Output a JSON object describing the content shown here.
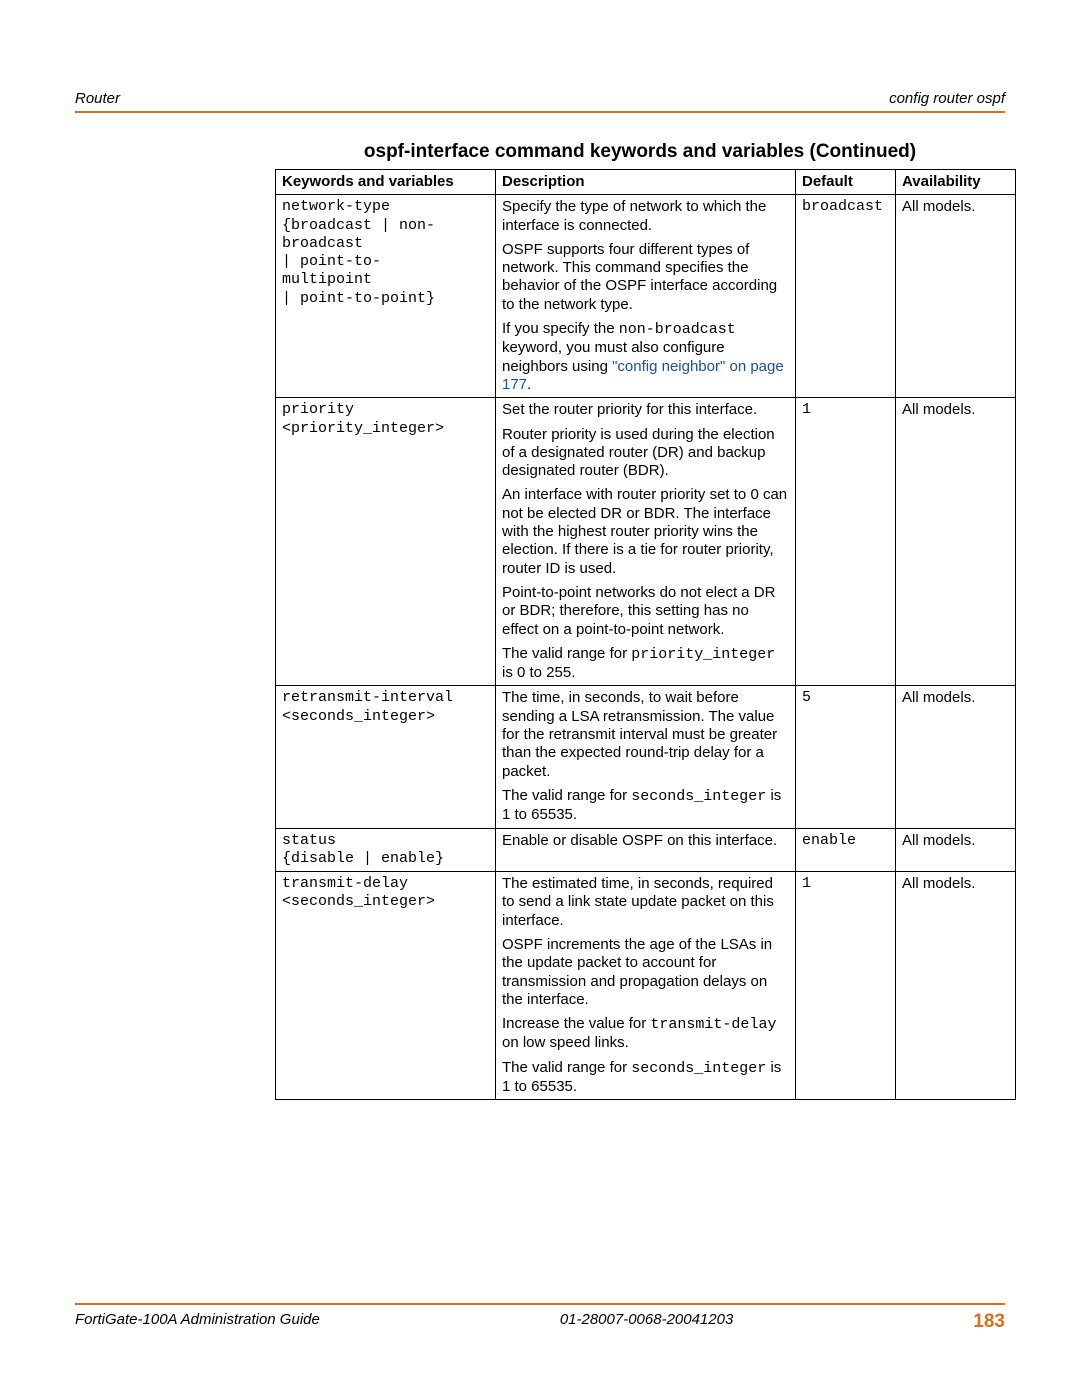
{
  "header": {
    "left": "Router",
    "right": "config router ospf"
  },
  "title": "ospf-interface command keywords and variables (Continued)",
  "columns": {
    "c1": "Keywords and variables",
    "c2": "Description",
    "c3": "Default",
    "c4": "Availability"
  },
  "rows": {
    "r1": {
      "kw_l1": "network-type",
      "kw_l2": "{broadcast | non-",
      "kw_l3": "broadcast",
      "kw_l4": "| point-to-",
      "kw_l5": "multipoint",
      "kw_l6": "| point-to-point}",
      "desc_p1": "Specify the type of network to which the interface is connected.",
      "desc_p2": "OSPF supports four different types of network. This command specifies the behavior of the OSPF interface according to the network type.",
      "desc_p3a": "If you specify the ",
      "desc_p3_mono": "non-broadcast",
      "desc_p3b": " keyword, you must also configure neighbors using ",
      "desc_p3_link": "\"config neighbor\" on page 177",
      "desc_p3c": ".",
      "default": "broadcast",
      "avail": "All models."
    },
    "r2": {
      "kw_l1": "priority",
      "kw_l2": "<priority_integer>",
      "desc_p1": "Set the router priority for this interface.",
      "desc_p2": "Router priority is used during the election of a designated router (DR) and backup designated router (BDR).",
      "desc_p3": "An interface with router priority set to 0 can not be elected DR or BDR. The interface with the highest router priority wins the election. If there is a tie for router priority, router ID is used.",
      "desc_p4": "Point-to-point networks do not elect a DR or BDR; therefore, this setting has no effect on a point-to-point network.",
      "desc_p5a": "The valid range for ",
      "desc_p5_mono": "priority_integer",
      "desc_p5b": " is 0 to 255.",
      "default": "1",
      "avail": "All models."
    },
    "r3": {
      "kw_l1": "retransmit-interval",
      "kw_l2": "<seconds_integer>",
      "desc_p1": "The time, in seconds, to wait before sending a LSA retransmission. The value for the retransmit interval must be greater than the expected round-trip delay for a packet.",
      "desc_p2a": "The valid range for ",
      "desc_p2_mono": "seconds_integer",
      "desc_p2b": " is 1 to 65535.",
      "default": "5",
      "avail": "All models."
    },
    "r4": {
      "kw_l1": "status",
      "kw_l2": "{disable | enable}",
      "desc_p1": "Enable or disable OSPF on this interface.",
      "default": "enable",
      "avail": "All models."
    },
    "r5": {
      "kw_l1": "transmit-delay",
      "kw_l2": "<seconds_integer>",
      "desc_p1": "The estimated time, in seconds, required to send a link state update packet on this interface.",
      "desc_p2": "OSPF increments the age of the LSAs in the update packet to account for transmission and propagation delays on the interface.",
      "desc_p3a": "Increase the value for ",
      "desc_p3_mono": "transmit-delay",
      "desc_p3b": " on low speed links.",
      "desc_p4a": "The valid range for ",
      "desc_p4_mono": "seconds_integer",
      "desc_p4b": " is 1 to 65535.",
      "default": "1",
      "avail": "All models."
    }
  },
  "footer": {
    "left": "FortiGate-100A Administration Guide",
    "center": "01-28007-0068-20041203",
    "page": "183"
  }
}
